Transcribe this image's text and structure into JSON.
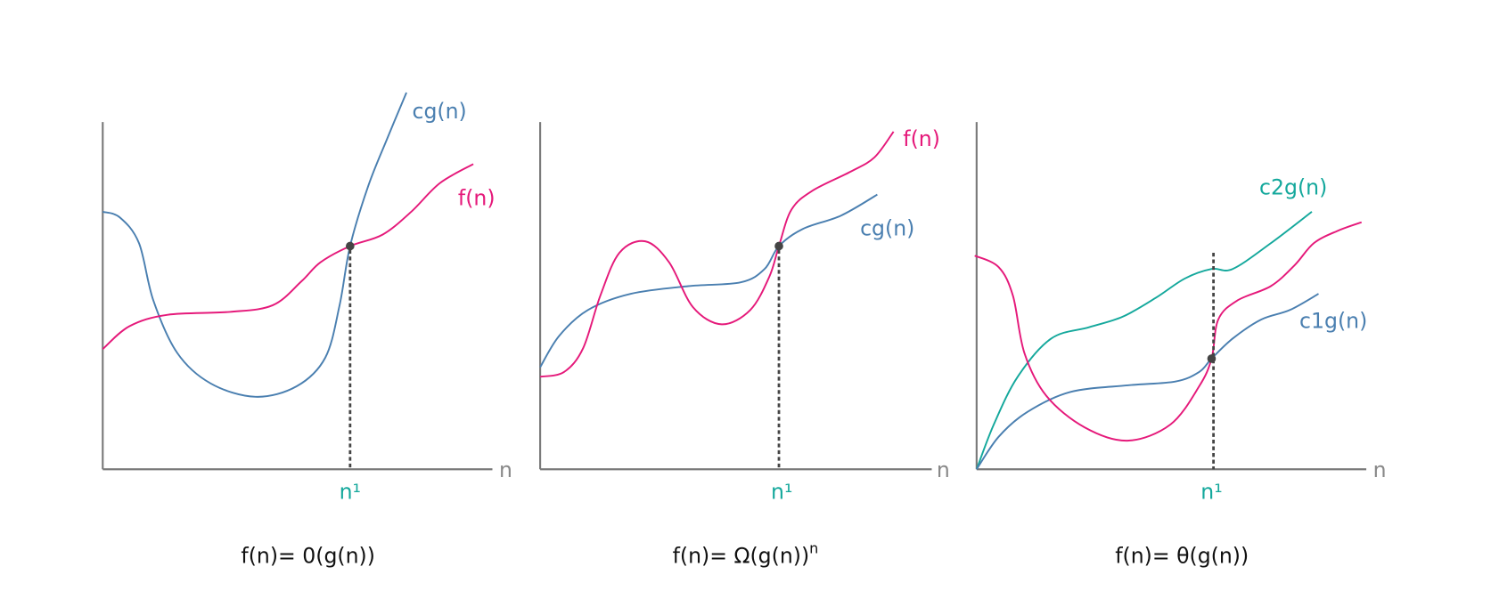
{
  "colors": {
    "f": "#e5197a",
    "g": "#4a7fb0",
    "c2": "#14a89c",
    "n1": "#14a89c",
    "axis": "#7a7a7a",
    "point": "#444444"
  },
  "panels": [
    {
      "axis_label": "n",
      "threshold_label": "n¹",
      "curve_labels": {
        "g": "cg(n)",
        "f": "f(n)"
      },
      "caption": "f(n)= 0(g(n))"
    },
    {
      "axis_label": "n",
      "threshold_label": "n¹",
      "curve_labels": {
        "f": "f(n)",
        "g": "cg(n)"
      },
      "caption": "f(n)= Ω(g(n))",
      "caption_superscript": "n"
    },
    {
      "axis_label": "n",
      "threshold_label": "n¹",
      "curve_labels": {
        "c2": "c2g(n)",
        "c1": "c1g(n)"
      },
      "caption": "f(n)= θ(g(n))"
    }
  ]
}
